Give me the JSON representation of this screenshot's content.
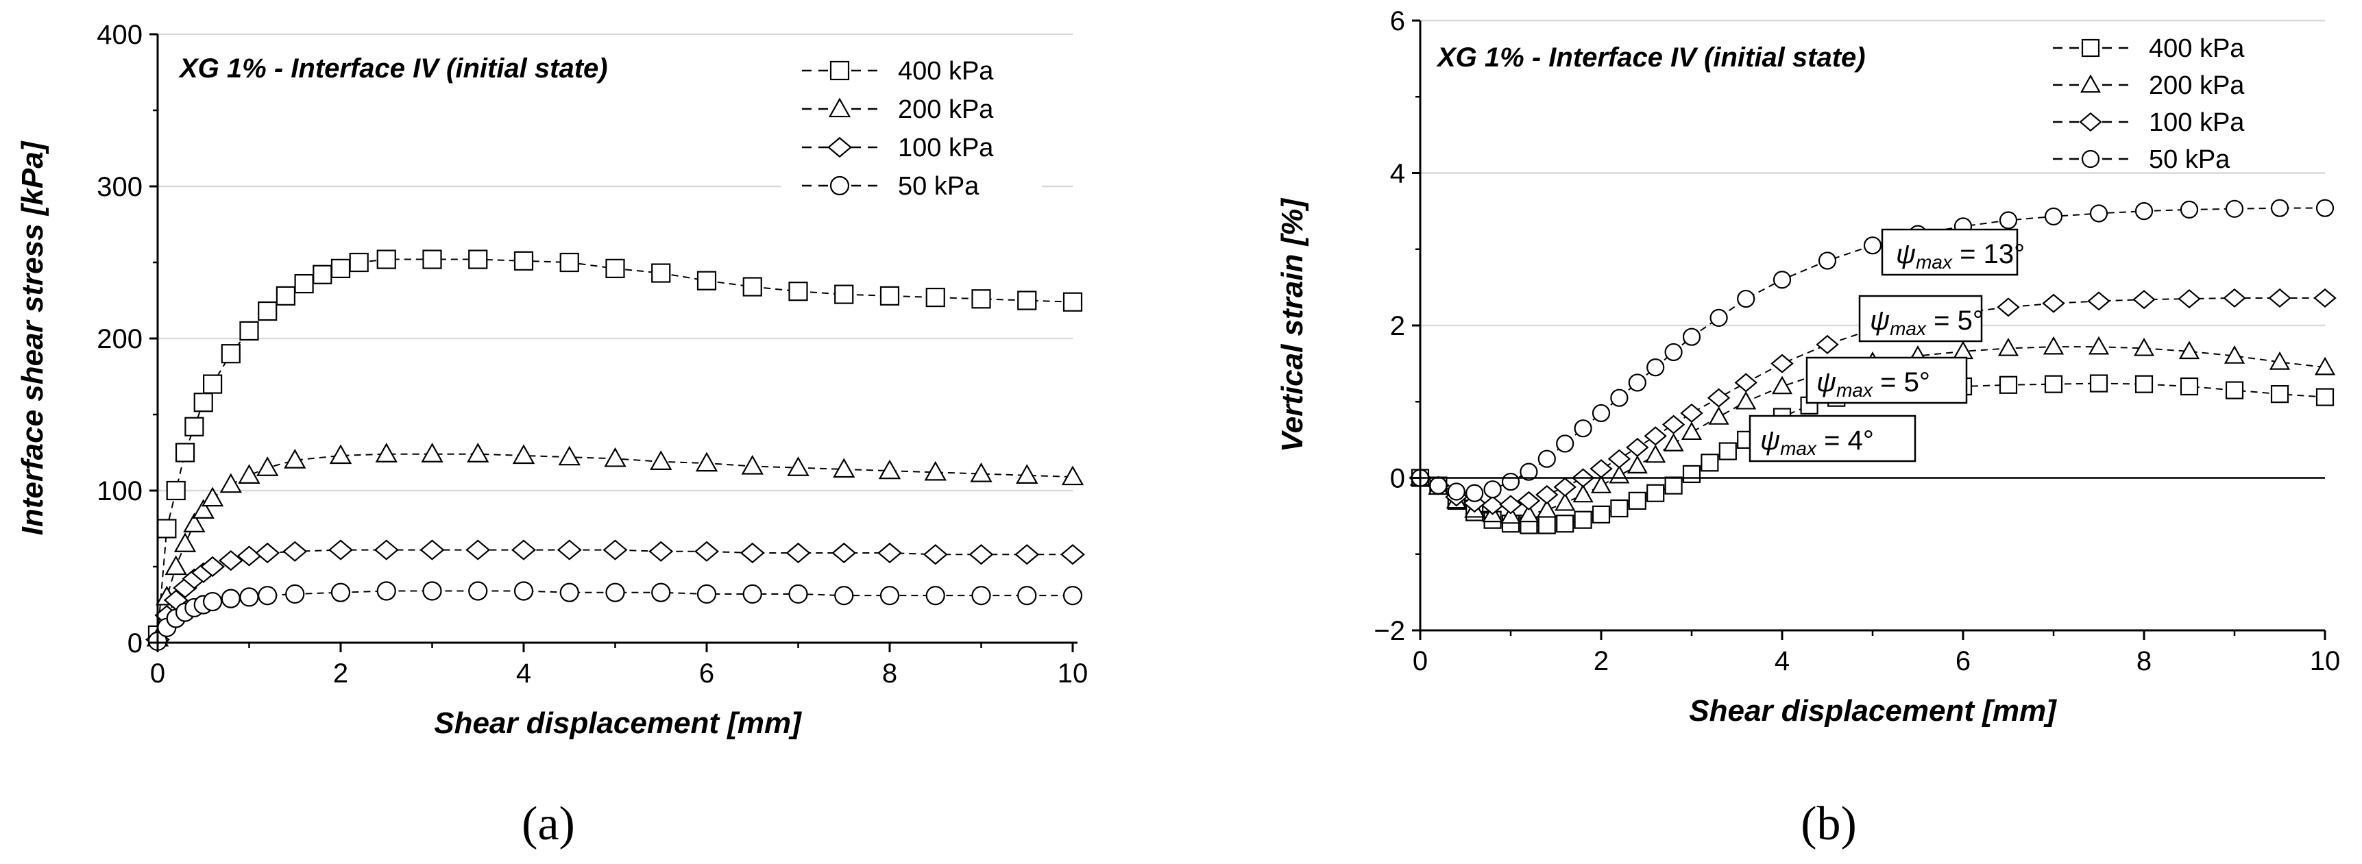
{
  "chart_data": [
    {
      "type": "scatter",
      "title": "XG 1% - Interface IV (initial state)",
      "xlabel": "Shear displacement [mm]",
      "ylabel": "Interface shear stress [kPa]",
      "xlim": [
        0,
        10
      ],
      "ylim": [
        0,
        400
      ],
      "xticks": [
        "0",
        "2",
        "4",
        "6",
        "8",
        "10"
      ],
      "yticks": [
        "0",
        "100",
        "200",
        "300",
        "400"
      ],
      "grid": "horizontal",
      "legend_position": "top-right",
      "caption": "(a)",
      "series": [
        {
          "name": "400 kPa",
          "marker": "square",
          "color": "#000000",
          "x": [
            0,
            0.1,
            0.2,
            0.3,
            0.4,
            0.5,
            0.6,
            0.8,
            1.0,
            1.2,
            1.4,
            1.6,
            1.8,
            2.0,
            2.2,
            2.5,
            3.0,
            3.5,
            4.0,
            4.5,
            5.0,
            5.5,
            6.0,
            6.5,
            7.0,
            7.5,
            8.0,
            8.5,
            9.0,
            9.5,
            10.0
          ],
          "y": [
            5,
            75,
            100,
            125,
            142,
            158,
            170,
            190,
            205,
            218,
            228,
            236,
            242,
            246,
            250,
            252,
            252,
            252,
            251,
            250,
            246,
            243,
            238,
            234,
            231,
            229,
            228,
            227,
            226,
            225,
            224
          ]
        },
        {
          "name": "200 kPa",
          "marker": "triangle",
          "color": "#000000",
          "x": [
            0,
            0.1,
            0.2,
            0.3,
            0.4,
            0.5,
            0.6,
            0.8,
            1.0,
            1.2,
            1.5,
            2.0,
            2.5,
            3.0,
            3.5,
            4.0,
            4.5,
            5.0,
            5.5,
            6.0,
            6.5,
            7.0,
            7.5,
            8.0,
            8.5,
            9.0,
            9.5,
            10.0
          ],
          "y": [
            3,
            30,
            50,
            65,
            78,
            87,
            95,
            104,
            110,
            115,
            120,
            123,
            124,
            124,
            124,
            123,
            122,
            121,
            119,
            118,
            116,
            115,
            114,
            113,
            112,
            111,
            110,
            109
          ]
        },
        {
          "name": "100 kPa",
          "marker": "diamond",
          "color": "#000000",
          "x": [
            0,
            0.1,
            0.2,
            0.3,
            0.4,
            0.5,
            0.6,
            0.8,
            1.0,
            1.2,
            1.5,
            2.0,
            2.5,
            3.0,
            3.5,
            4.0,
            4.5,
            5.0,
            5.5,
            6.0,
            6.5,
            7.0,
            7.5,
            8.0,
            8.5,
            9.0,
            9.5,
            10.0
          ],
          "y": [
            2,
            18,
            28,
            36,
            42,
            46,
            50,
            54,
            57,
            59,
            60,
            61,
            61,
            61,
            61,
            61,
            61,
            61,
            60,
            60,
            59,
            59,
            59,
            59,
            58,
            58,
            58,
            58
          ]
        },
        {
          "name": "50 kPa",
          "marker": "circle",
          "color": "#000000",
          "x": [
            0,
            0.1,
            0.2,
            0.3,
            0.4,
            0.5,
            0.6,
            0.8,
            1.0,
            1.2,
            1.5,
            2.0,
            2.5,
            3.0,
            3.5,
            4.0,
            4.5,
            5.0,
            5.5,
            6.0,
            6.5,
            7.0,
            7.5,
            8.0,
            8.5,
            9.0,
            9.5,
            10.0
          ],
          "y": [
            1,
            10,
            16,
            20,
            23,
            25,
            27,
            29,
            30,
            31,
            32,
            33,
            34,
            34,
            34,
            34,
            33,
            33,
            33,
            32,
            32,
            32,
            31,
            31,
            31,
            31,
            31,
            31
          ]
        }
      ]
    },
    {
      "type": "scatter",
      "title": "XG 1% - Interface IV (initial state)",
      "xlabel": "Shear displacement [mm]",
      "ylabel": "Vertical strain [%]",
      "xlim": [
        0,
        10
      ],
      "ylim": [
        -2,
        6
      ],
      "xticks": [
        "0",
        "2",
        "4",
        "6",
        "8",
        "10"
      ],
      "yticks": [
        "−2",
        "0",
        "2",
        "4",
        "6"
      ],
      "grid": "horizontal",
      "legend_position": "top-right",
      "caption": "(b)",
      "annotations": [
        {
          "symbol": "ψ",
          "sub": "max",
          "text": " = 13°"
        },
        {
          "symbol": "ψ",
          "sub": "max",
          "text": "  = 5°"
        },
        {
          "symbol": "ψ",
          "sub": "max",
          "text": "  = 5°"
        },
        {
          "symbol": "ψ",
          "sub": "max",
          "text": "  = 4°"
        }
      ],
      "series": [
        {
          "name": "400 kPa",
          "marker": "square",
          "color": "#000000",
          "x": [
            0,
            0.2,
            0.4,
            0.6,
            0.8,
            1.0,
            1.2,
            1.4,
            1.6,
            1.8,
            2.0,
            2.2,
            2.4,
            2.6,
            2.8,
            3.0,
            3.2,
            3.4,
            3.6,
            3.8,
            4.0,
            4.3,
            4.6,
            5.0,
            5.5,
            6.0,
            6.5,
            7.0,
            7.5,
            8.0,
            8.5,
            9.0,
            9.5,
            10.0
          ],
          "y": [
            0,
            -0.1,
            -0.3,
            -0.45,
            -0.55,
            -0.6,
            -0.62,
            -0.62,
            -0.6,
            -0.55,
            -0.48,
            -0.4,
            -0.3,
            -0.2,
            -0.1,
            0.05,
            0.2,
            0.35,
            0.5,
            0.65,
            0.8,
            0.95,
            1.05,
            1.12,
            1.18,
            1.2,
            1.22,
            1.23,
            1.24,
            1.23,
            1.2,
            1.15,
            1.1,
            1.06
          ]
        },
        {
          "name": "200 kPa",
          "marker": "triangle",
          "color": "#000000",
          "x": [
            0,
            0.2,
            0.4,
            0.6,
            0.8,
            1.0,
            1.2,
            1.4,
            1.6,
            1.8,
            2.0,
            2.2,
            2.4,
            2.6,
            2.8,
            3.0,
            3.3,
            3.6,
            4.0,
            4.5,
            5.0,
            5.5,
            6.0,
            6.5,
            7.0,
            7.5,
            8.0,
            8.5,
            9.0,
            9.5,
            10.0
          ],
          "y": [
            0,
            -0.12,
            -0.3,
            -0.42,
            -0.48,
            -0.5,
            -0.48,
            -0.42,
            -0.33,
            -0.22,
            -0.1,
            0.03,
            0.16,
            0.3,
            0.45,
            0.6,
            0.8,
            1.0,
            1.2,
            1.4,
            1.52,
            1.6,
            1.66,
            1.7,
            1.72,
            1.72,
            1.7,
            1.66,
            1.6,
            1.52,
            1.45
          ]
        },
        {
          "name": "100 kPa",
          "marker": "diamond",
          "color": "#000000",
          "x": [
            0,
            0.2,
            0.4,
            0.6,
            0.8,
            1.0,
            1.2,
            1.4,
            1.6,
            1.8,
            2.0,
            2.2,
            2.4,
            2.6,
            2.8,
            3.0,
            3.3,
            3.6,
            4.0,
            4.5,
            5.0,
            5.5,
            6.0,
            6.5,
            7.0,
            7.5,
            8.0,
            8.5,
            9.0,
            9.5,
            10.0
          ],
          "y": [
            0,
            -0.1,
            -0.25,
            -0.33,
            -0.36,
            -0.35,
            -0.3,
            -0.22,
            -0.12,
            0.0,
            0.12,
            0.25,
            0.4,
            0.55,
            0.7,
            0.85,
            1.05,
            1.25,
            1.5,
            1.75,
            1.95,
            2.08,
            2.17,
            2.24,
            2.29,
            2.32,
            2.34,
            2.35,
            2.36,
            2.36,
            2.36
          ]
        },
        {
          "name": "50 kPa",
          "marker": "circle",
          "color": "#000000",
          "x": [
            0,
            0.2,
            0.4,
            0.6,
            0.8,
            1.0,
            1.2,
            1.4,
            1.6,
            1.8,
            2.0,
            2.2,
            2.4,
            2.6,
            2.8,
            3.0,
            3.3,
            3.6,
            4.0,
            4.5,
            5.0,
            5.5,
            6.0,
            6.5,
            7.0,
            7.5,
            8.0,
            8.5,
            9.0,
            9.5,
            10.0
          ],
          "y": [
            0,
            -0.1,
            -0.18,
            -0.2,
            -0.15,
            -0.05,
            0.08,
            0.25,
            0.45,
            0.65,
            0.85,
            1.05,
            1.25,
            1.45,
            1.65,
            1.85,
            2.1,
            2.35,
            2.6,
            2.85,
            3.05,
            3.2,
            3.3,
            3.38,
            3.43,
            3.47,
            3.5,
            3.52,
            3.53,
            3.54,
            3.54
          ]
        }
      ]
    }
  ]
}
